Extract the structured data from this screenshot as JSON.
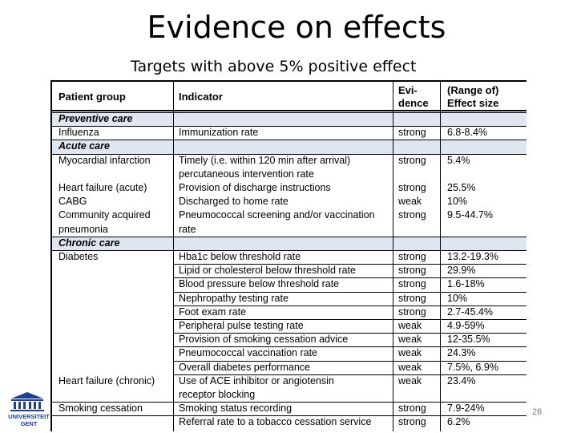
{
  "slide": {
    "title": "Evidence on effects",
    "subtitle": "Targets with above 5% positive effect",
    "page_number": "26",
    "logo_text_line1": "UNIVERSITEIT",
    "logo_text_line2": "GENT"
  },
  "table": {
    "headers": {
      "group": "Patient group",
      "indicator": "Indicator",
      "evidence_line1": "Evi-",
      "evidence_line2": "dence",
      "effect_line1": "(Range of)",
      "effect_line2": "Effect size"
    },
    "cells": [
      {
        "text": "Preventive care",
        "col": "group",
        "row": 0,
        "section": true
      },
      {
        "text": "Influenza",
        "col": "group",
        "row": 1
      },
      {
        "text": "Immunization rate",
        "col": "indicator",
        "row": 1
      },
      {
        "text": "strong",
        "col": "evidence",
        "row": 1
      },
      {
        "text": "6.8-8.4%",
        "col": "effect",
        "row": 1
      },
      {
        "text": "Acute care",
        "col": "group",
        "row": 2,
        "section": true
      },
      {
        "text": "Myocardial infarction",
        "col": "group",
        "row": 3
      },
      {
        "text": "Timely (i.e. within 120 min after arrival)",
        "col": "indicator",
        "row": 3
      },
      {
        "text": "strong",
        "col": "evidence",
        "row": 3
      },
      {
        "text": "5.4%",
        "col": "effect",
        "row": 3
      },
      {
        "text": "percutaneous intervention rate",
        "col": "indicator",
        "row": 4
      },
      {
        "text": "Heart failure (acute)",
        "col": "group",
        "row": 5
      },
      {
        "text": "Provision of discharge instructions",
        "col": "indicator",
        "row": 5
      },
      {
        "text": "strong",
        "col": "evidence",
        "row": 5
      },
      {
        "text": "25.5%",
        "col": "effect",
        "row": 5
      },
      {
        "text": "CABG",
        "col": "group",
        "row": 6
      },
      {
        "text": "Discharged to home rate",
        "col": "indicator",
        "row": 6
      },
      {
        "text": "weak",
        "col": "evidence",
        "row": 6
      },
      {
        "text": "10%",
        "col": "effect",
        "row": 6
      },
      {
        "text": "Community acquired",
        "col": "group",
        "row": 7
      },
      {
        "text": "Pneumococcal screening and/or vaccination",
        "col": "indicator",
        "row": 7
      },
      {
        "text": "strong",
        "col": "evidence",
        "row": 7
      },
      {
        "text": "9.5-44.7%",
        "col": "effect",
        "row": 7
      },
      {
        "text": "pneumonia",
        "col": "group",
        "row": 8
      },
      {
        "text": "rate",
        "col": "indicator",
        "row": 8
      },
      {
        "text": "Chronic care",
        "col": "group",
        "row": 9,
        "section": true
      },
      {
        "text": "Diabetes",
        "col": "group",
        "row": 10
      },
      {
        "text": "Hba1c below threshold rate",
        "col": "indicator",
        "row": 10
      },
      {
        "text": "strong",
        "col": "evidence",
        "row": 10
      },
      {
        "text": "13.2-19.3%",
        "col": "effect",
        "row": 10
      },
      {
        "text": "Lipid or cholesterol below threshold rate",
        "col": "indicator",
        "row": 11
      },
      {
        "text": "strong",
        "col": "evidence",
        "row": 11
      },
      {
        "text": "29.9%",
        "col": "effect",
        "row": 11
      },
      {
        "text": "Blood pressure below threshold rate",
        "col": "indicator",
        "row": 12
      },
      {
        "text": "strong",
        "col": "evidence",
        "row": 12
      },
      {
        "text": "1.6-18%",
        "col": "effect",
        "row": 12
      },
      {
        "text": "Nephropathy testing rate",
        "col": "indicator",
        "row": 13
      },
      {
        "text": "strong",
        "col": "evidence",
        "row": 13
      },
      {
        "text": "10%",
        "col": "effect",
        "row": 13
      },
      {
        "text": "Foot exam rate",
        "col": "indicator",
        "row": 14
      },
      {
        "text": "strong",
        "col": "evidence",
        "row": 14
      },
      {
        "text": "2.7-45.4%",
        "col": "effect",
        "row": 14
      },
      {
        "text": "Peripheral pulse testing rate",
        "col": "indicator",
        "row": 15
      },
      {
        "text": "weak",
        "col": "evidence",
        "row": 15
      },
      {
        "text": "4.9-59%",
        "col": "effect",
        "row": 15
      },
      {
        "text": "Provision of smoking cessation advice",
        "col": "indicator",
        "row": 16
      },
      {
        "text": "weak",
        "col": "evidence",
        "row": 16
      },
      {
        "text": "12-35.5%",
        "col": "effect",
        "row": 16
      },
      {
        "text": "Pneumococcal vaccination rate",
        "col": "indicator",
        "row": 17
      },
      {
        "text": "weak",
        "col": "evidence",
        "row": 17
      },
      {
        "text": "24.3%",
        "col": "effect",
        "row": 17
      },
      {
        "text": "Overall diabetes performance",
        "col": "indicator",
        "row": 18
      },
      {
        "text": "weak",
        "col": "evidence",
        "row": 18
      },
      {
        "text": "7.5%, 6.9%",
        "col": "effect",
        "row": 18
      },
      {
        "text": "Heart failure (chronic)",
        "col": "group",
        "row": 19
      },
      {
        "text": "Use of ACE inhibitor or angiotensin",
        "col": "indicator",
        "row": 19
      },
      {
        "text": "weak",
        "col": "evidence",
        "row": 19
      },
      {
        "text": "23.4%",
        "col": "effect",
        "row": 19
      },
      {
        "text": "receptor blocking",
        "col": "indicator",
        "row": 20
      },
      {
        "text": "Smoking cessation",
        "col": "group",
        "row": 21
      },
      {
        "text": "Smoking status recording",
        "col": "indicator",
        "row": 21
      },
      {
        "text": "strong",
        "col": "evidence",
        "row": 21
      },
      {
        "text": "7.9-24%",
        "col": "effect",
        "row": 21
      },
      {
        "text": "Referral rate to a tobacco cessation service",
        "col": "indicator",
        "row": 22
      },
      {
        "text": "strong",
        "col": "evidence",
        "row": 22
      },
      {
        "text": "6.2%",
        "col": "effect",
        "row": 22
      }
    ]
  }
}
